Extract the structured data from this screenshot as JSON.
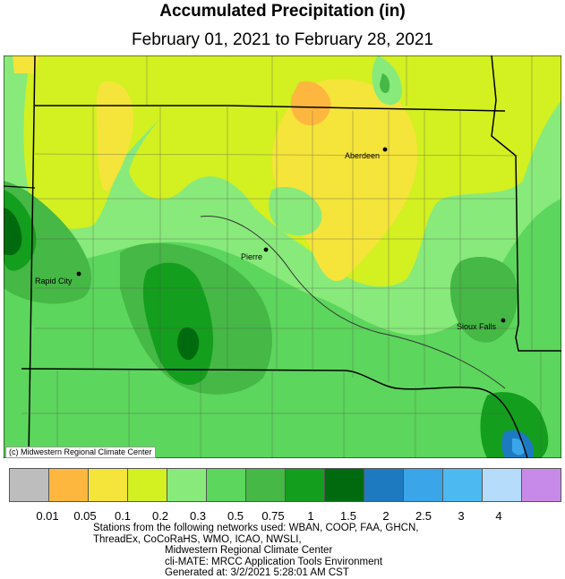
{
  "title": "Accumulated Precipitation (in)",
  "subtitle": "February 01, 2021 to February 28, 2021",
  "credit": "(c) Midwestern Regional Climate Center",
  "cities": [
    {
      "name": "Aberdeen"
    },
    {
      "name": "Pierre"
    },
    {
      "name": "Rapid City"
    },
    {
      "name": "Sioux Falls"
    }
  ],
  "legend": {
    "colors": [
      "#bdbdbd",
      "#fdb73f",
      "#f5e43a",
      "#d3f021",
      "#88ea7a",
      "#5cd65c",
      "#45b845",
      "#149e1d",
      "#006b0e",
      "#1d7ac0",
      "#3aa5e8",
      "#4cb9f0",
      "#b5dcfa",
      "#c88ae8"
    ],
    "labels": [
      "0.01",
      "0.05",
      "0.1",
      "0.2",
      "0.3",
      "0.5",
      "0.75",
      "1",
      "1.5",
      "2",
      "2.5",
      "3",
      "4"
    ]
  },
  "footer": {
    "line1": "Stations from the following networks used: WBAN, COOP, FAA, GHCN,",
    "line2": "ThreadEx, CoCoRaHS, WMO, ICAO, NWSLI,",
    "line3": "Midwestern Regional Climate Center",
    "line4": "cli-MATE: MRCC Application Tools Environment",
    "line5": "Generated at: 3/2/2021 5:28:01 AM CST"
  }
}
